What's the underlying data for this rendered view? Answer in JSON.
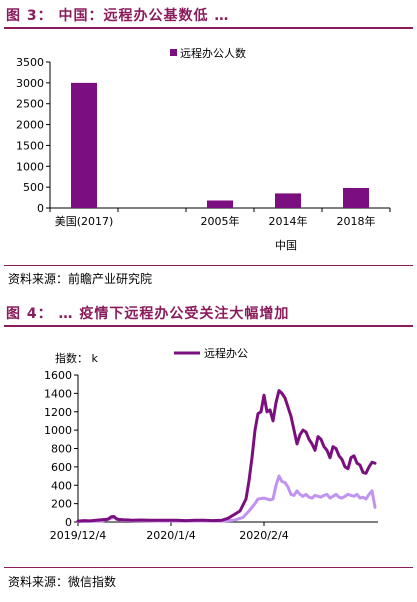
{
  "figure3": {
    "title": "图 3：  中国：远程办公基数低 …",
    "source": "资料来源：前瞻产业研究院"
  },
  "figure4": {
    "title": "图 4：  …  疫情下远程办公受关注大幅增加",
    "source": "资料来源：微信指数"
  },
  "colors": {
    "dark_series": "#7b0f7f",
    "light_series": "#c193f0",
    "title_color": "#8b1c5c"
  },
  "chart_data": [
    {
      "type": "bar",
      "categories": [
        "美国(2017)",
        "",
        "2005年",
        "2014年",
        "2018年"
      ],
      "group_label": "中国",
      "series": [
        {
          "name": "远程办公人数",
          "values": [
            3000,
            null,
            180,
            350,
            480
          ]
        }
      ],
      "ylim": [
        0,
        3500
      ],
      "yticks": [
        0,
        500,
        1000,
        1500,
        2000,
        2500,
        3000,
        3500
      ],
      "legend_position": "top-right",
      "grid": false
    },
    {
      "type": "line",
      "ylabel": "指数： k",
      "ylim": [
        0,
        1600
      ],
      "yticks": [
        0,
        200,
        400,
        600,
        800,
        1000,
        1200,
        1400,
        1600
      ],
      "xticks": [
        "2019/12/4",
        "2020/1/4",
        "2020/2/4"
      ],
      "x_range": [
        "2019/12/4",
        "2020/3/13"
      ],
      "legend_position": "top-center",
      "grid": false,
      "series": [
        {
          "name": "远程办公",
          "color": "#7b0f7f",
          "points": [
            [
              "2019/12/4",
              10
            ],
            [
              "2019/12/6",
              15
            ],
            [
              "2019/12/8",
              12
            ],
            [
              "2019/12/10",
              20
            ],
            [
              "2019/12/12",
              25
            ],
            [
              "2019/12/14",
              30
            ],
            [
              "2019/12/15",
              55
            ],
            [
              "2019/12/16",
              60
            ],
            [
              "2019/12/17",
              30
            ],
            [
              "2019/12/19",
              25
            ],
            [
              "2019/12/22",
              20
            ],
            [
              "2019/12/25",
              22
            ],
            [
              "2019/12/28",
              18
            ],
            [
              "2019/12/31",
              20
            ],
            [
              "2020/1/3",
              18
            ],
            [
              "2020/1/6",
              20
            ],
            [
              "2020/1/9",
              15
            ],
            [
              "2020/1/12",
              20
            ],
            [
              "2020/1/15",
              18
            ],
            [
              "2020/1/18",
              15
            ],
            [
              "2020/1/21",
              20
            ],
            [
              "2020/1/23",
              40
            ],
            [
              "2020/1/25",
              80
            ],
            [
              "2020/1/27",
              120
            ],
            [
              "2020/1/29",
              250
            ],
            [
              "2020/1/30",
              450
            ],
            [
              "2020/1/31",
              700
            ],
            [
              "2020/2/1",
              1000
            ],
            [
              "2020/2/2",
              1180
            ],
            [
              "2020/2/3",
              1200
            ],
            [
              "2020/2/4",
              1380
            ],
            [
              "2020/2/5",
              1200
            ],
            [
              "2020/2/6",
              1220
            ],
            [
              "2020/2/7",
              1100
            ],
            [
              "2020/2/8",
              1300
            ],
            [
              "2020/2/9",
              1430
            ],
            [
              "2020/2/10",
              1400
            ],
            [
              "2020/2/11",
              1350
            ],
            [
              "2020/2/12",
              1250
            ],
            [
              "2020/2/13",
              1150
            ],
            [
              "2020/2/14",
              1000
            ],
            [
              "2020/2/15",
              850
            ],
            [
              "2020/2/16",
              950
            ],
            [
              "2020/2/17",
              1000
            ],
            [
              "2020/2/18",
              980
            ],
            [
              "2020/2/19",
              900
            ],
            [
              "2020/2/20",
              850
            ],
            [
              "2020/2/21",
              780
            ],
            [
              "2020/2/22",
              930
            ],
            [
              "2020/2/23",
              900
            ],
            [
              "2020/2/24",
              820
            ],
            [
              "2020/2/25",
              780
            ],
            [
              "2020/2/26",
              700
            ],
            [
              "2020/2/27",
              820
            ],
            [
              "2020/2/28",
              800
            ],
            [
              "2020/2/29",
              720
            ],
            [
              "2020/3/1",
              680
            ],
            [
              "2020/3/2",
              600
            ],
            [
              "2020/3/3",
              580
            ],
            [
              "2020/3/4",
              700
            ],
            [
              "2020/3/5",
              720
            ],
            [
              "2020/3/6",
              640
            ],
            [
              "2020/3/7",
              620
            ],
            [
              "2020/3/8",
              540
            ],
            [
              "2020/3/9",
              530
            ],
            [
              "2020/3/10",
              600
            ],
            [
              "2020/3/11",
              650
            ],
            [
              "2020/3/12",
              640
            ]
          ]
        },
        {
          "name": "",
          "color": "#c193f0",
          "points": [
            [
              "2019/12/4",
              5
            ],
            [
              "2019/12/8",
              8
            ],
            [
              "2019/12/12",
              10
            ],
            [
              "2019/12/15",
              40
            ],
            [
              "2019/12/16",
              50
            ],
            [
              "2019/12/18",
              20
            ],
            [
              "2019/12/22",
              15
            ],
            [
              "2019/12/28",
              12
            ],
            [
              "2020/1/3",
              10
            ],
            [
              "2020/1/9",
              10
            ],
            [
              "2020/1/15",
              12
            ],
            [
              "2020/1/21",
              10
            ],
            [
              "2020/1/25",
              20
            ],
            [
              "2020/1/28",
              50
            ],
            [
              "2020/1/30",
              120
            ],
            [
              "2020/2/1",
              200
            ],
            [
              "2020/2/2",
              250
            ],
            [
              "2020/2/4",
              260
            ],
            [
              "2020/2/6",
              240
            ],
            [
              "2020/2/7",
              250
            ],
            [
              "2020/2/8",
              400
            ],
            [
              "2020/2/9",
              500
            ],
            [
              "2020/2/10",
              440
            ],
            [
              "2020/2/11",
              430
            ],
            [
              "2020/2/12",
              380
            ],
            [
              "2020/2/13",
              300
            ],
            [
              "2020/2/14",
              290
            ],
            [
              "2020/2/15",
              340
            ],
            [
              "2020/2/16",
              300
            ],
            [
              "2020/2/17",
              280
            ],
            [
              "2020/2/18",
              300
            ],
            [
              "2020/2/19",
              270
            ],
            [
              "2020/2/20",
              260
            ],
            [
              "2020/2/21",
              290
            ],
            [
              "2020/2/22",
              280
            ],
            [
              "2020/2/23",
              270
            ],
            [
              "2020/2/24",
              290
            ],
            [
              "2020/2/25",
              300
            ],
            [
              "2020/2/26",
              260
            ],
            [
              "2020/2/27",
              280
            ],
            [
              "2020/2/28",
              300
            ],
            [
              "2020/2/29",
              270
            ],
            [
              "2020/3/1",
              260
            ],
            [
              "2020/3/2",
              280
            ],
            [
              "2020/3/3",
              300
            ],
            [
              "2020/3/4",
              290
            ],
            [
              "2020/3/5",
              280
            ],
            [
              "2020/3/6",
              300
            ],
            [
              "2020/3/7",
              260
            ],
            [
              "2020/3/8",
              270
            ],
            [
              "2020/3/9",
              250
            ],
            [
              "2020/3/10",
              300
            ],
            [
              "2020/3/11",
              340
            ],
            [
              "2020/3/12",
              160
            ]
          ]
        }
      ]
    }
  ]
}
